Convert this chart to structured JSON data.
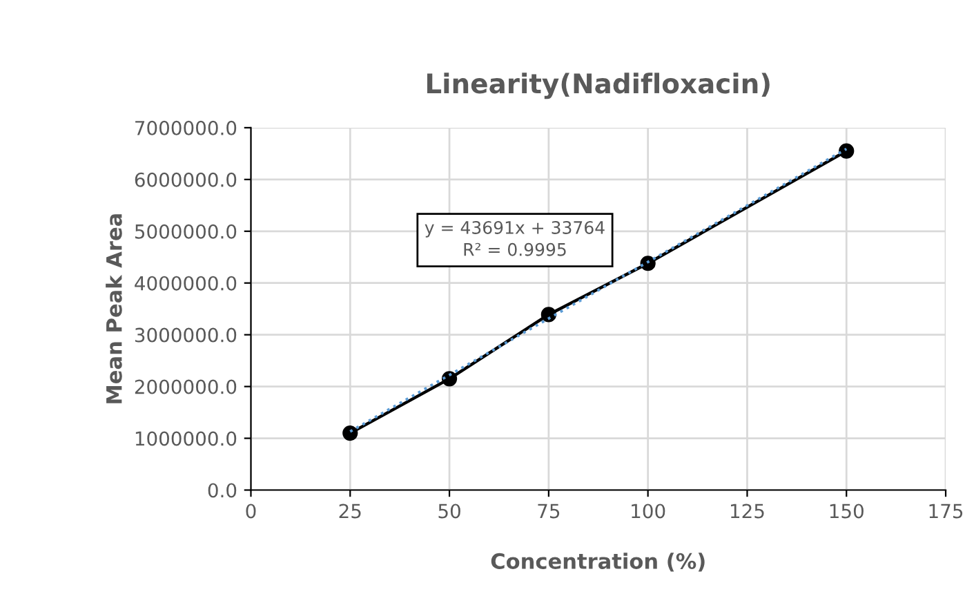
{
  "chart_data": {
    "type": "line",
    "title": "Linearity(Nadifloxacin)",
    "xlabel": "Concentration (%)",
    "ylabel": "Mean Peak Area",
    "series": [
      {
        "color": "#000000",
        "marker": "circle",
        "line_style": "solid",
        "x": [
          25,
          50,
          75,
          100,
          150
        ],
        "values": [
          1100000,
          2150000,
          3390000,
          4380000,
          6550000
        ]
      },
      {
        "color": "#5b9bd5",
        "marker": "none",
        "line_style": "dotted",
        "x": [
          25,
          150
        ],
        "values": [
          1130000,
          6590000
        ]
      }
    ],
    "annotations": [
      "y = 43691x + 33764\nR² = 0.9995"
    ],
    "xlim": [
      0,
      175
    ],
    "xticks": [
      0,
      25,
      50,
      75,
      100,
      125,
      150,
      175
    ],
    "ylim": [
      0,
      7000000
    ],
    "yticks": [
      {
        "value": 0,
        "label": "0.0"
      },
      {
        "value": 1000000,
        "label": "1000000.0"
      },
      {
        "value": 2000000,
        "label": "2000000.0"
      },
      {
        "value": 3000000,
        "label": "3000000.0"
      },
      {
        "value": 4000000,
        "label": "4000000.0"
      },
      {
        "value": 5000000,
        "label": "5000000.0"
      },
      {
        "value": 6000000,
        "label": "6000000.0"
      },
      {
        "value": 7000000,
        "label": "7000000.0"
      }
    ],
    "grid": true
  }
}
